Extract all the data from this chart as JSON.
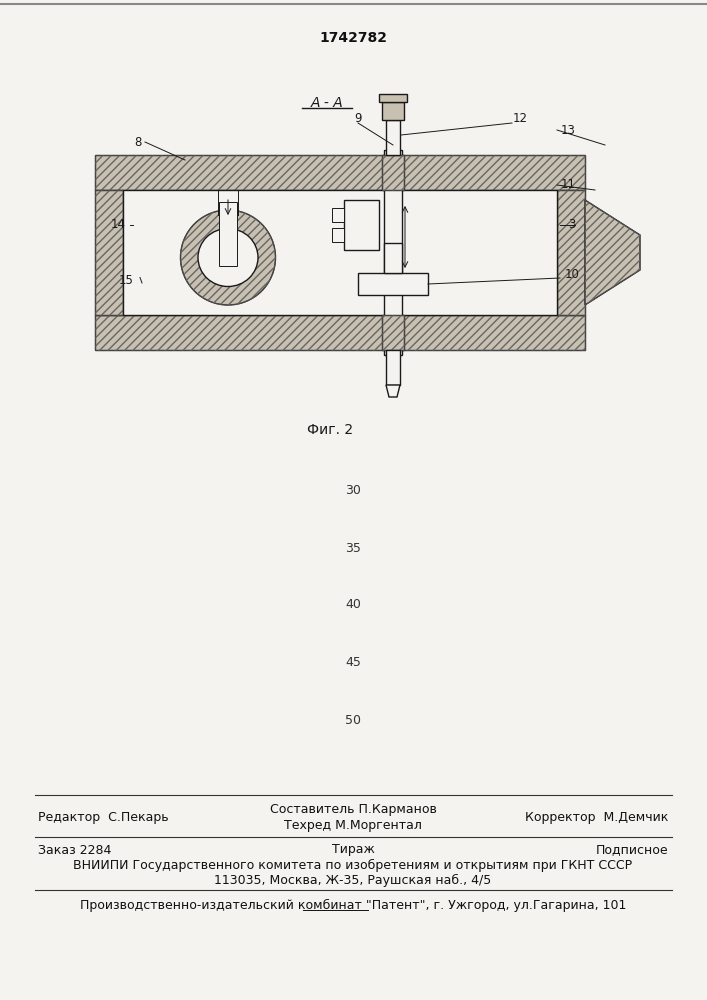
{
  "patent_number": "1742782",
  "section_label": "А - А",
  "fig_label": "Фиг. 2",
  "bg_color": "#f5f3f0",
  "hatch_fill": "#c8c0b0",
  "white_fill": "#f5f3f0",
  "line_color": "#1a1a1a",
  "numbers_30_to_50": [
    30,
    35,
    40,
    45,
    50
  ],
  "footer": {
    "editor": "Редактор  С.Пекарь",
    "composer1": "Составитель П.Карманов",
    "composer2": "Техред М.Моргентал",
    "corrector": "Корректор  М.Демчик",
    "order": "Заказ 2284",
    "tirazh": "Тираж",
    "podpisnoe": "Подписное",
    "vnipi1": "ВНИИПИ Государственного комитета по изобретениям и открытиям при ГКНТ СССР",
    "vnipi2": "113035, Москва, Ж-35, Раушская наб., 4/5",
    "production": "Производственно-издательский комбинат \"Патент\", г. Ужгород, ул.Гагарина, 101"
  }
}
